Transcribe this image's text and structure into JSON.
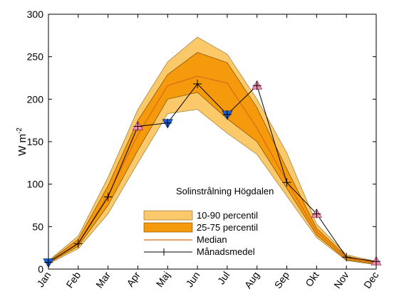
{
  "chart_data": {
    "type": "area",
    "annotation": "Solinstrålning Högdalen",
    "ylabel": "W m",
    "ylabel_superscript": "-2",
    "ylim": [
      0,
      300
    ],
    "yticks": [
      0,
      50,
      100,
      150,
      200,
      250,
      300
    ],
    "categories": [
      "Jan",
      "Feb",
      "Mar",
      "Apr",
      "Maj",
      "Jun",
      "Jul",
      "Aug",
      "Sep",
      "Okt",
      "Nov",
      "Dec"
    ],
    "grid": false,
    "legend_position": "lower-center",
    "series": [
      {
        "name": "10-90 percentil",
        "color": "#fbc96a",
        "lower": [
          6,
          24,
          65,
          125,
          183,
          188,
          160,
          135,
          86,
          37,
          10,
          5
        ],
        "upper": [
          10,
          39,
          108,
          188,
          244,
          273,
          253,
          200,
          137,
          53,
          17,
          9
        ]
      },
      {
        "name": "25-75 percentil",
        "color": "#f59a0c",
        "lower": [
          7,
          27,
          75,
          140,
          200,
          208,
          177,
          150,
          95,
          40,
          11,
          6
        ],
        "upper": [
          9,
          35,
          98,
          175,
          229,
          255,
          243,
          190,
          118,
          48,
          15,
          8
        ]
      },
      {
        "name": "Median",
        "color": "#d96b1a",
        "values": [
          8,
          31,
          87,
          158,
          216,
          227,
          219,
          166,
          103,
          44,
          13,
          7
        ]
      },
      {
        "name": "Månadsmedel",
        "color": "#000000",
        "values": [
          8,
          30,
          85,
          168,
          172,
          218,
          182,
          216,
          102,
          65,
          14,
          9
        ]
      }
    ],
    "markers": {
      "up_triangle_color": "#f48ab0",
      "down_triangle_color": "#1a5fd6",
      "up_months": [
        "Apr",
        "Aug",
        "Okt",
        "Dec"
      ],
      "down_months": [
        "Jan",
        "Maj",
        "Jul"
      ]
    }
  }
}
